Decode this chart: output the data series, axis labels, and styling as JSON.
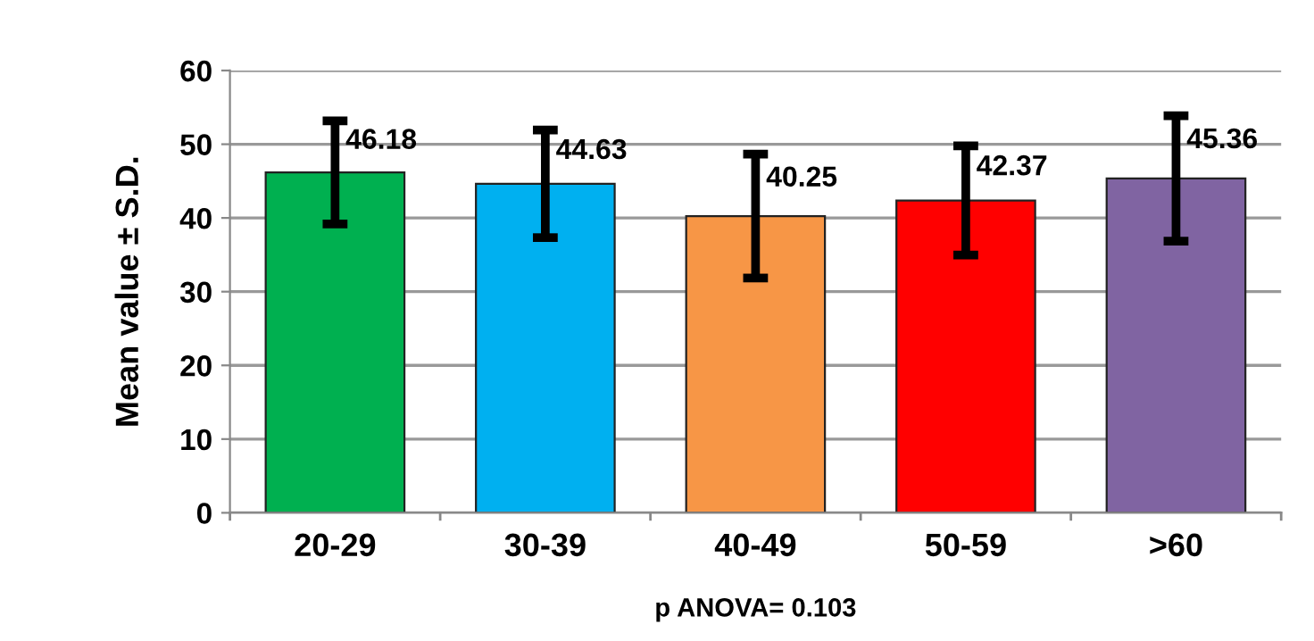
{
  "chart_data": {
    "type": "bar",
    "ylabel": "Mean value ± S.D.",
    "categories": [
      "20-29",
      "30-39",
      "40-49",
      "50-59",
      ">60"
    ],
    "values": [
      46.18,
      44.63,
      40.25,
      42.37,
      45.36
    ],
    "errors": [
      7,
      7.3,
      8.4,
      7.4,
      8.5
    ],
    "colors": [
      "#00b050",
      "#00b0f0",
      "#f79646",
      "#ff0000",
      "#8064a2"
    ],
    "data_labels": true,
    "ylim": [
      0,
      60
    ],
    "yticks": [
      0,
      10,
      20,
      30,
      40,
      50,
      60
    ],
    "grid": "y",
    "annotations": [
      "p ANOVA= 0.103"
    ]
  }
}
